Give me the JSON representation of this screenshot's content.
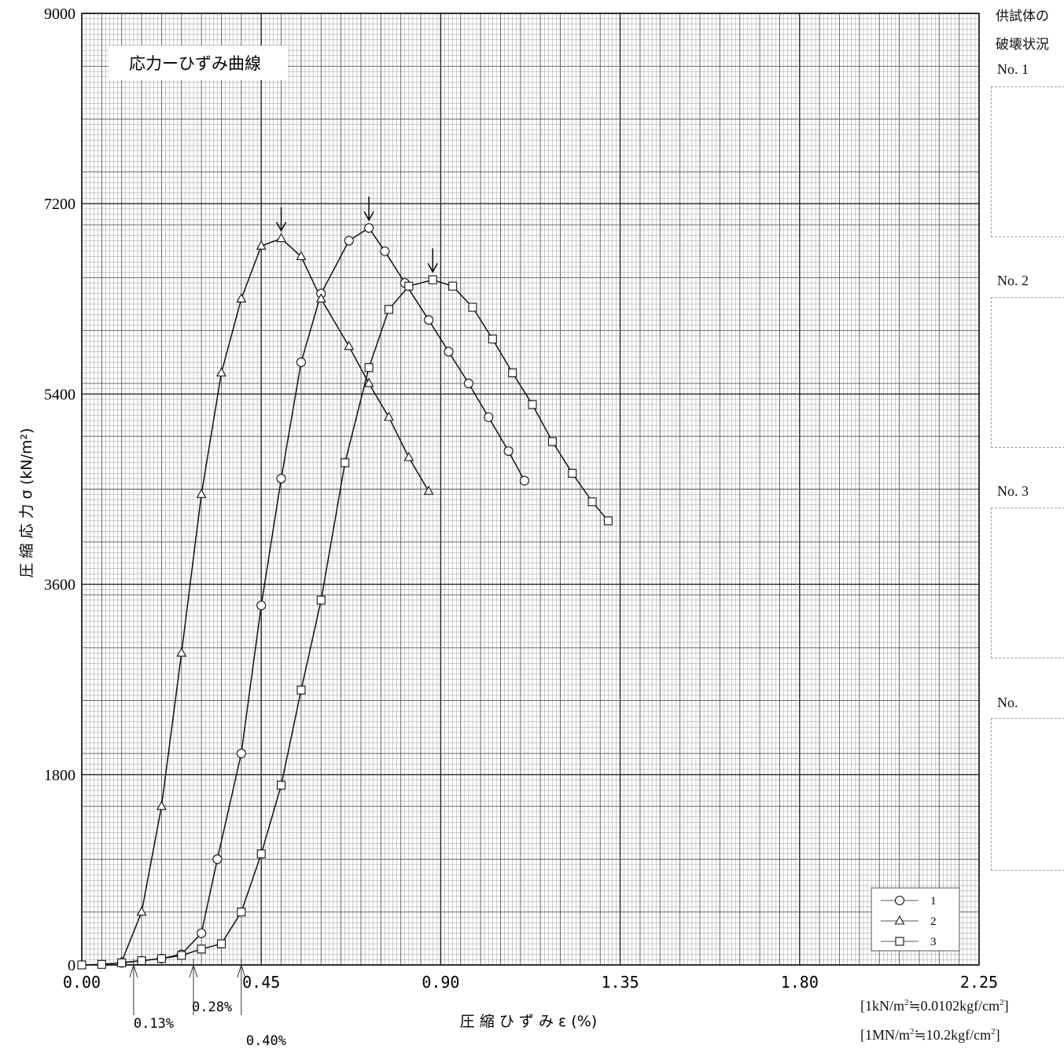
{
  "chart_data": {
    "type": "line",
    "title": "応力ーひずみ曲線",
    "xlabel": "圧 縮 ひ ず み ε (%)",
    "ylabel": "圧 縮 応 力 σ (kN/m²)",
    "xlim": [
      0,
      2.25
    ],
    "ylim": [
      0,
      9000
    ],
    "xticks": [
      "0.00",
      "0.45",
      "0.90",
      "1.35",
      "1.80",
      "2.25"
    ],
    "yticks": [
      "0",
      "1800",
      "3600",
      "5400",
      "7200",
      "9000"
    ],
    "grid": true,
    "legend_position": "bottom-right",
    "series": [
      {
        "name": "1",
        "marker": "circle",
        "points": [
          [
            0.1,
            20
          ],
          [
            0.15,
            40
          ],
          [
            0.2,
            60
          ],
          [
            0.25,
            100
          ],
          [
            0.3,
            300
          ],
          [
            0.34,
            1000
          ],
          [
            0.4,
            2000
          ],
          [
            0.45,
            3400
          ],
          [
            0.5,
            4600
          ],
          [
            0.55,
            5700
          ],
          [
            0.6,
            6350
          ],
          [
            0.67,
            6850
          ],
          [
            0.72,
            6970
          ],
          [
            0.76,
            6750
          ],
          [
            0.81,
            6450
          ],
          [
            0.87,
            6100
          ],
          [
            0.92,
            5800
          ],
          [
            0.97,
            5500
          ],
          [
            1.02,
            5180
          ],
          [
            1.07,
            4860
          ],
          [
            1.11,
            4580
          ]
        ],
        "peak": [
          0.72,
          6970
        ]
      },
      {
        "name": "2",
        "marker": "triangle",
        "points": [
          [
            0.1,
            30
          ],
          [
            0.15,
            500
          ],
          [
            0.2,
            1500
          ],
          [
            0.25,
            2950
          ],
          [
            0.3,
            4450
          ],
          [
            0.35,
            5600
          ],
          [
            0.4,
            6300
          ],
          [
            0.45,
            6800
          ],
          [
            0.5,
            6870
          ],
          [
            0.55,
            6700
          ],
          [
            0.6,
            6300
          ],
          [
            0.67,
            5850
          ],
          [
            0.72,
            5500
          ],
          [
            0.77,
            5180
          ],
          [
            0.82,
            4800
          ],
          [
            0.87,
            4480
          ]
        ],
        "peak": [
          0.5,
          6870
        ]
      },
      {
        "name": "3",
        "marker": "square",
        "points": [
          [
            0.0,
            0
          ],
          [
            0.05,
            5
          ],
          [
            0.1,
            20
          ],
          [
            0.15,
            40
          ],
          [
            0.2,
            60
          ],
          [
            0.25,
            90
          ],
          [
            0.3,
            150
          ],
          [
            0.35,
            200
          ],
          [
            0.4,
            500
          ],
          [
            0.45,
            1050
          ],
          [
            0.5,
            1700
          ],
          [
            0.55,
            2600
          ],
          [
            0.6,
            3450
          ],
          [
            0.66,
            4750
          ],
          [
            0.72,
            5650
          ],
          [
            0.77,
            6200
          ],
          [
            0.82,
            6420
          ],
          [
            0.88,
            6480
          ],
          [
            0.93,
            6420
          ],
          [
            0.98,
            6220
          ],
          [
            1.03,
            5920
          ],
          [
            1.08,
            5600
          ],
          [
            1.13,
            5300
          ],
          [
            1.18,
            4950
          ],
          [
            1.23,
            4650
          ],
          [
            1.28,
            4380
          ],
          [
            1.32,
            4200
          ]
        ],
        "peak": [
          0.88,
          6480
        ]
      }
    ],
    "annotations": {
      "x_intercepts": [
        {
          "label": "0.13%",
          "value": 0.13
        },
        {
          "label": "0.28%",
          "value": 0.28
        },
        {
          "label": "0.40%",
          "value": 0.4
        }
      ]
    }
  },
  "side": {
    "title_line1": "供試体の",
    "title_line2": "破壊状況",
    "panels": [
      {
        "label": "No. 1"
      },
      {
        "label": "No. 2"
      },
      {
        "label": "No. 3"
      },
      {
        "label": "No."
      }
    ]
  },
  "units": {
    "line1_pre": "[1kN/m",
    "line1_sup": "2",
    "line1_mid": "≒0.0102kgf/cm",
    "line1_sup2": "2",
    "line1_post": "]",
    "line2_pre": "[1MN/m",
    "line2_sup": "2",
    "line2_mid": "≒10.2kgf/cm",
    "line2_sup2": "2",
    "line2_post": "]"
  }
}
